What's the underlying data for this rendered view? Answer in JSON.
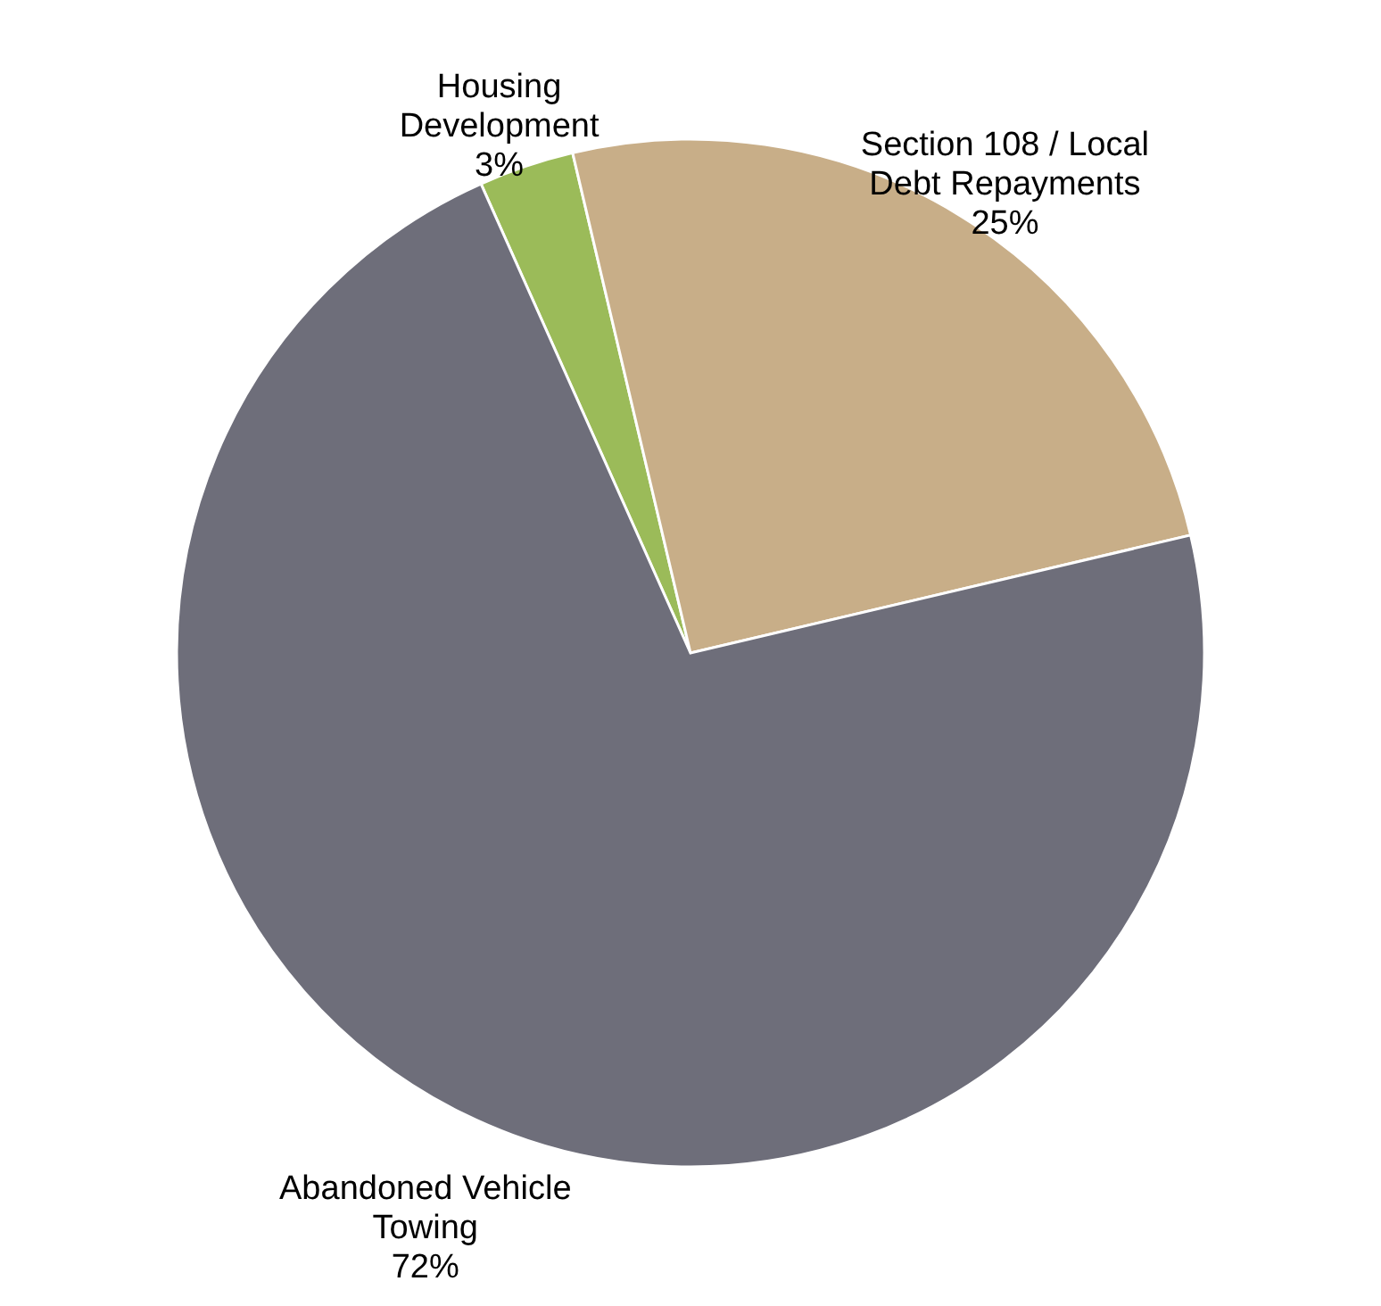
{
  "chart_data": {
    "type": "pie",
    "categories": [
      "Housing\nDevelopment",
      "Section 108 / Local\nDebt Repayments",
      "Abandoned Vehicle\nTowing"
    ],
    "values": [
      3,
      25,
      72
    ],
    "value_labels": [
      "3%",
      "25%",
      "72%"
    ],
    "colors": [
      "#9bbb59",
      "#c8ae88",
      "#6e6e7a"
    ]
  }
}
